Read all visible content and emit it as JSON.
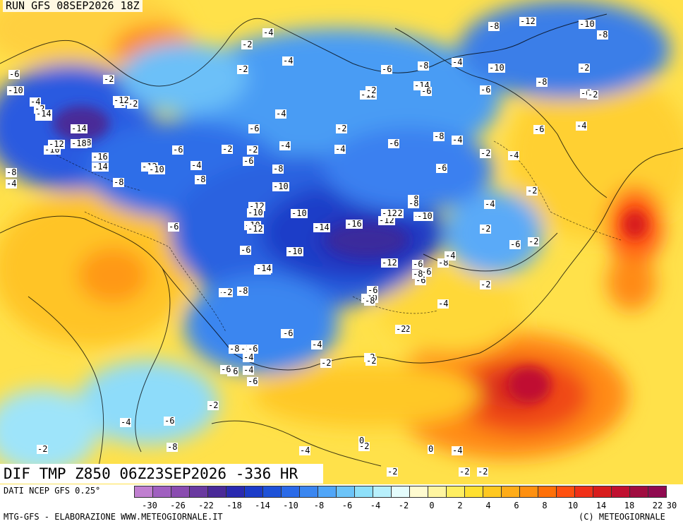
{
  "header": {
    "run_label": "RUN GFS 08SEP2026 18Z"
  },
  "map_title": "DIF TMP Z850 06Z23SEP2026 -336 HR",
  "footer": {
    "data_source": "DATI NCEP GFS 0.25°",
    "credit_left": "MTG-GFS - ELABORAZIONE WWW.METEOGIORNALE.IT",
    "credit_right": "(C) METEOGIORNALE"
  },
  "legend": {
    "colors": [
      "#c07fd0",
      "#a060c0",
      "#8a4cb0",
      "#6a3aa0",
      "#4a2a98",
      "#2a2ab0",
      "#1c3cc8",
      "#1e52d8",
      "#2a6ae8",
      "#3a86f0",
      "#50a6f8",
      "#6cc4f8",
      "#8ee0fa",
      "#b8f0fc",
      "#e4fcfc",
      "#fffbd0",
      "#fff5a0",
      "#ffee60",
      "#ffe030",
      "#ffc820",
      "#ffac18",
      "#ff9010",
      "#ff7008",
      "#ff5010",
      "#f03018",
      "#d81c1c",
      "#c01030",
      "#a00c40",
      "#900a50"
    ],
    "ticks": [
      "-30",
      "-26",
      "-22",
      "-18",
      "-14",
      "-10",
      "-8",
      "-6",
      "-4",
      "-2",
      "0",
      "2",
      "4",
      "6",
      "8",
      "10",
      "14",
      "18",
      "22",
      "30"
    ]
  },
  "isotherm_labels": [
    "-2",
    "-4",
    "-6",
    "-8",
    "-10",
    "-12",
    "-14",
    "-16",
    "-18",
    "0"
  ],
  "field_labels": [
    {
      "v": "-4"
    },
    {
      "v": "-2"
    },
    {
      "v": "-4"
    },
    {
      "v": "-2"
    },
    {
      "v": "-6"
    },
    {
      "v": "-8"
    },
    {
      "v": "-4"
    },
    {
      "v": "-10"
    },
    {
      "v": "-12"
    },
    {
      "v": "-8"
    },
    {
      "v": "-10"
    },
    {
      "v": "-8"
    },
    {
      "v": "-2"
    },
    {
      "v": "-6"
    },
    {
      "v": "-10"
    },
    {
      "v": "-14"
    },
    {
      "v": "-12"
    },
    {
      "v": "-6"
    },
    {
      "v": "-6"
    },
    {
      "v": "-2"
    },
    {
      "v": "-4"
    },
    {
      "v": "-2"
    },
    {
      "v": "-10"
    },
    {
      "v": "-12"
    },
    {
      "v": "-14"
    },
    {
      "v": "-8"
    },
    {
      "v": "-6"
    },
    {
      "v": "-8"
    },
    {
      "v": "-4"
    },
    {
      "v": "-10"
    },
    {
      "v": "-12"
    },
    {
      "v": "-14"
    },
    {
      "v": "-18"
    },
    {
      "v": "-16"
    },
    {
      "v": "-14"
    },
    {
      "v": "-12"
    },
    {
      "v": "-10"
    },
    {
      "v": "-4"
    },
    {
      "v": "-8"
    },
    {
      "v": "-8"
    },
    {
      "v": "-6"
    },
    {
      "v": "-4"
    },
    {
      "v": "-2"
    },
    {
      "v": "-2"
    },
    {
      "v": "-6"
    },
    {
      "v": "-4"
    },
    {
      "v": "-6"
    },
    {
      "v": "-2"
    },
    {
      "v": "-6"
    },
    {
      "v": "-4"
    },
    {
      "v": "-2"
    },
    {
      "v": "-6"
    },
    {
      "v": "-4"
    },
    {
      "v": "-8"
    },
    {
      "v": "-6"
    },
    {
      "v": "-8"
    },
    {
      "v": "-10"
    },
    {
      "v": "-12"
    },
    {
      "v": "-10"
    },
    {
      "v": "-12"
    },
    {
      "v": "-14"
    },
    {
      "v": "-16"
    },
    {
      "v": "-12"
    },
    {
      "v": "-10"
    },
    {
      "v": "-6"
    },
    {
      "v": "-10"
    },
    {
      "v": "-14"
    },
    {
      "v": "-8"
    },
    {
      "v": "-2"
    },
    {
      "v": "-8"
    },
    {
      "v": "-4"
    },
    {
      "v": "-6"
    },
    {
      "v": "-8"
    },
    {
      "v": "-10"
    },
    {
      "v": "-4"
    },
    {
      "v": "-6"
    },
    {
      "v": "-2"
    },
    {
      "v": "-2"
    },
    {
      "v": "-2"
    },
    {
      "v": "-4"
    },
    {
      "v": "-6"
    },
    {
      "v": "-8"
    },
    {
      "v": "-6"
    },
    {
      "v": "-2"
    },
    {
      "v": "-4"
    },
    {
      "v": "-6"
    },
    {
      "v": "-2"
    },
    {
      "v": "-8"
    },
    {
      "v": "-6"
    },
    {
      "v": "-2"
    },
    {
      "v": "-2"
    },
    {
      "v": "-4"
    },
    {
      "v": "-6"
    },
    {
      "v": "-2"
    },
    {
      "v": "-4"
    },
    {
      "v": "0"
    },
    {
      "v": "-2"
    },
    {
      "v": "0"
    },
    {
      "v": "-4"
    },
    {
      "v": "-2"
    },
    {
      "v": "-2"
    },
    {
      "v": "-2"
    },
    {
      "v": "-2"
    },
    {
      "v": "-4"
    },
    {
      "v": "-2"
    },
    {
      "v": "-2"
    },
    {
      "v": "-4"
    },
    {
      "v": "-6"
    },
    {
      "v": "-8"
    },
    {
      "v": "-10"
    },
    {
      "v": "-12"
    },
    {
      "v": "-10"
    },
    {
      "v": "-8"
    },
    {
      "v": "-6"
    },
    {
      "v": "-2"
    },
    {
      "v": "-6"
    },
    {
      "v": "-8"
    },
    {
      "v": "-12"
    },
    {
      "v": "-14"
    },
    {
      "v": "-10"
    },
    {
      "v": "-12"
    },
    {
      "v": "-6"
    },
    {
      "v": "-2"
    },
    {
      "v": "-4"
    },
    {
      "v": "-6"
    },
    {
      "v": "-8"
    },
    {
      "v": "-10"
    },
    {
      "v": "-6"
    },
    {
      "v": "-8"
    },
    {
      "v": "-6"
    },
    {
      "v": "-4"
    },
    {
      "v": "-2"
    },
    {
      "v": "0"
    },
    {
      "v": "-2"
    }
  ]
}
